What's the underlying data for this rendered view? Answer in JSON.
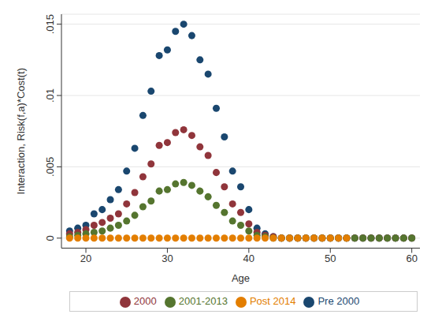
{
  "chart_data": {
    "type": "scatter",
    "x_label": "Age",
    "y_label": "Interaction, Risk(f,a)*Cost(t)",
    "x": [
      18,
      19,
      20,
      21,
      22,
      23,
      24,
      25,
      26,
      27,
      28,
      29,
      30,
      31,
      32,
      33,
      34,
      35,
      36,
      37,
      38,
      39,
      40,
      41,
      42,
      43,
      44,
      45,
      46,
      47,
      48,
      49,
      50,
      51,
      52,
      53,
      54,
      55,
      56,
      57,
      58,
      59,
      60
    ],
    "series": [
      {
        "name": "Pre 2000",
        "color": "#1a476f",
        "marker": "circle",
        "values": [
          0.0005,
          0.0007,
          0.0009,
          0.0017,
          0.002,
          0.0027,
          0.0034,
          0.0047,
          0.0063,
          0.0086,
          0.0103,
          0.0128,
          0.0132,
          0.0145,
          0.015,
          0.0142,
          0.0125,
          0.0115,
          0.0091,
          0.0071,
          0.0047,
          0.0036,
          0.002,
          0.0007,
          0.0003,
          0.0001,
          0,
          0,
          0,
          0,
          0,
          0,
          0,
          0,
          0,
          0,
          0,
          0,
          0,
          0,
          0,
          0,
          0
        ]
      },
      {
        "name": "2000",
        "color": "#90353b",
        "marker": "circle",
        "values": [
          0.0003,
          0.0004,
          0.0006,
          0.0009,
          0.0011,
          0.0014,
          0.0017,
          0.0024,
          0.0032,
          0.0043,
          0.0052,
          0.0065,
          0.0067,
          0.0074,
          0.0076,
          0.0072,
          0.0064,
          0.0058,
          0.0046,
          0.0036,
          0.0024,
          0.0018,
          0.001,
          0.0004,
          0.0002,
          0.0001,
          0,
          0,
          0,
          0,
          0,
          0,
          0,
          0,
          0,
          0,
          0,
          0,
          0,
          0,
          0,
          0,
          0
        ]
      },
      {
        "name": "2001-2013",
        "color": "#55752f",
        "marker": "circle",
        "values": [
          0.0001,
          0.0002,
          0.0003,
          0.0004,
          0.0005,
          0.0007,
          0.0009,
          0.0012,
          0.0016,
          0.0022,
          0.0026,
          0.0033,
          0.0034,
          0.0038,
          0.0039,
          0.0037,
          0.0033,
          0.0029,
          0.0023,
          0.0018,
          0.0012,
          0.0009,
          0.0005,
          0.0002,
          0.0001,
          0,
          0,
          0,
          0,
          0,
          0,
          0,
          0,
          0,
          0,
          0,
          0,
          0,
          0,
          0,
          0,
          0,
          0
        ]
      },
      {
        "name": "Post 2014",
        "color": "#e37e00",
        "marker": "circle",
        "values": [
          0,
          0,
          0,
          0,
          0,
          0,
          0,
          0,
          0,
          0,
          0,
          0,
          0,
          0,
          0,
          0,
          0,
          0,
          0,
          0,
          0,
          0,
          0,
          0,
          0,
          0,
          0,
          0,
          0,
          0,
          0,
          0,
          0,
          0,
          0,
          null,
          null,
          null,
          null,
          null,
          null,
          null,
          null
        ]
      }
    ],
    "xlim": [
      17,
      61
    ],
    "xticks": [
      20,
      30,
      40,
      50,
      60
    ],
    "ylim": [
      -0.0007,
      0.0157
    ],
    "yticks": [
      0,
      {
        "value": 0.005,
        "label": ".005"
      },
      {
        "value": 0.01,
        "label": ".01"
      },
      {
        "value": 0.015,
        "label": ".015"
      }
    ],
    "grid": true,
    "legend": "bottom"
  }
}
